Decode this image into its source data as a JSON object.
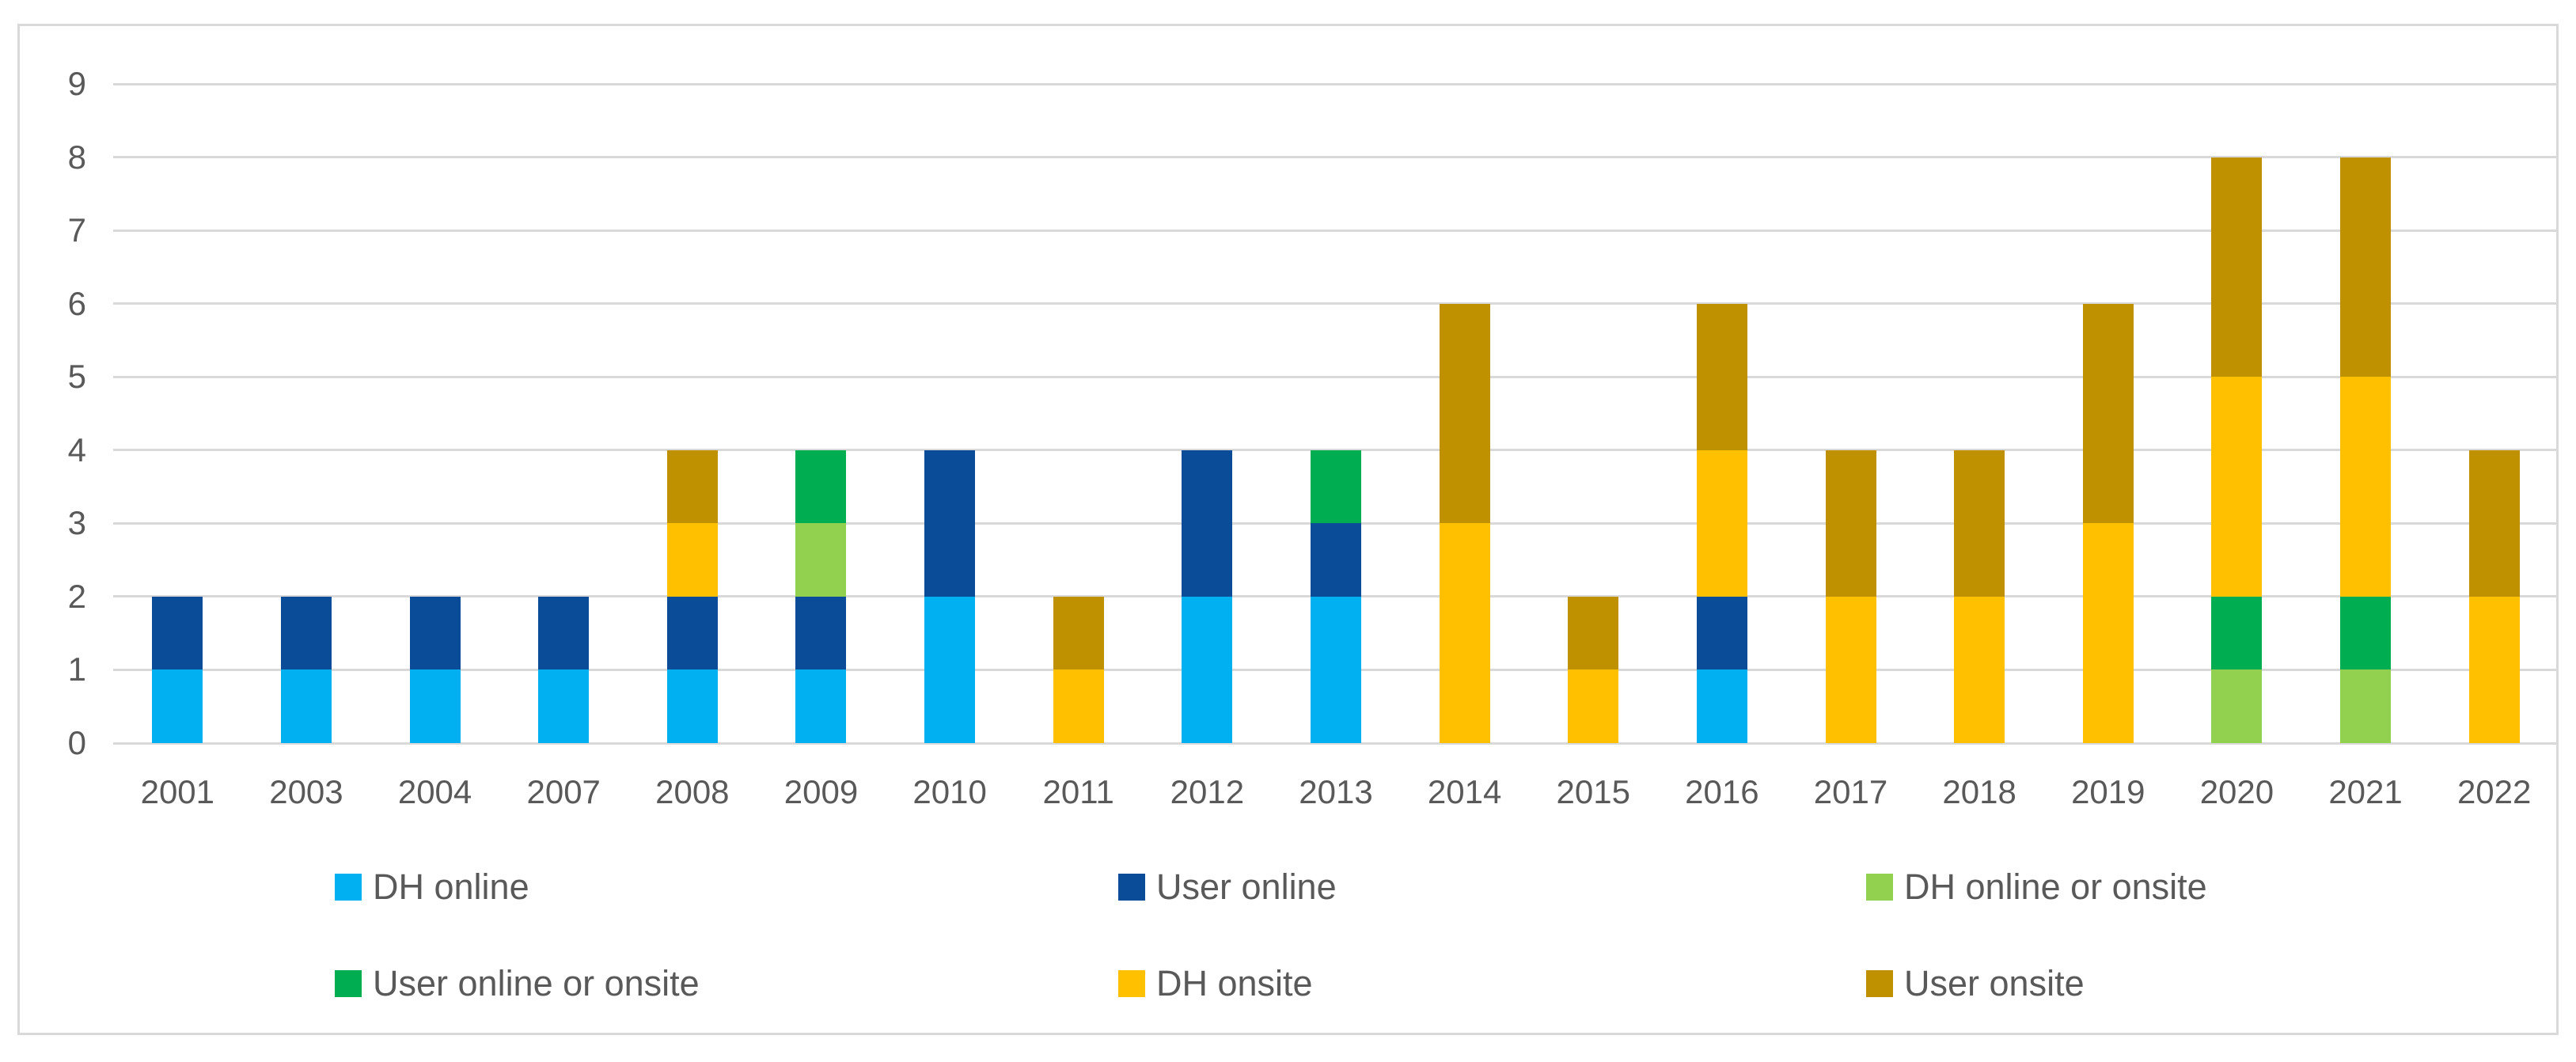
{
  "chart_data": {
    "type": "bar",
    "stacked": true,
    "title": "",
    "xlabel": "",
    "ylabel": "",
    "categories": [
      "2001",
      "2003",
      "2004",
      "2007",
      "2008",
      "2009",
      "2010",
      "2011",
      "2012",
      "2013",
      "2014",
      "2015",
      "2016",
      "2017",
      "2018",
      "2019",
      "2020",
      "2021",
      "2022"
    ],
    "series": [
      {
        "name": "DH online",
        "color": "#00B0F0",
        "values": [
          1,
          1,
          1,
          1,
          1,
          1,
          2,
          0,
          2,
          2,
          0,
          0,
          1,
          0,
          0,
          0,
          0,
          0,
          0
        ]
      },
      {
        "name": "User online",
        "color": "#0A4C97",
        "values": [
          1,
          1,
          1,
          1,
          1,
          1,
          2,
          0,
          2,
          1,
          0,
          0,
          1,
          0,
          0,
          0,
          0,
          0,
          0
        ]
      },
      {
        "name": "DH online or onsite",
        "color": "#92D050",
        "values": [
          0,
          0,
          0,
          0,
          0,
          1,
          0,
          0,
          0,
          0,
          0,
          0,
          0,
          0,
          0,
          0,
          1,
          1,
          0
        ]
      },
      {
        "name": "User online or onsite",
        "color": "#00AD51",
        "values": [
          0,
          0,
          0,
          0,
          0,
          1,
          0,
          0,
          0,
          1,
          0,
          0,
          0,
          0,
          0,
          0,
          1,
          1,
          0
        ]
      },
      {
        "name": "DH onsite",
        "color": "#FFC000",
        "values": [
          0,
          0,
          0,
          0,
          1,
          0,
          0,
          1,
          0,
          0,
          3,
          1,
          2,
          2,
          2,
          3,
          3,
          3,
          2
        ]
      },
      {
        "name": "User onsite",
        "color": "#BF9000",
        "values": [
          0,
          0,
          0,
          0,
          1,
          0,
          0,
          1,
          0,
          0,
          3,
          1,
          2,
          2,
          2,
          3,
          3,
          3,
          2
        ]
      }
    ],
    "ylim": [
      0,
      9
    ],
    "y_ticks": [
      0,
      1,
      2,
      3,
      4,
      5,
      6,
      7,
      8,
      9
    ],
    "grid": true,
    "legend_position": "bottom",
    "legend_rows": [
      [
        "DH online",
        "User online",
        "DH online or onsite"
      ],
      [
        "User online or onsite",
        "DH onsite",
        "User onsite"
      ]
    ]
  },
  "style": {
    "gridline_color": "#D9D9D9",
    "frame_border_color": "#D9D9D9",
    "tick_text_color": "#595959",
    "background_color": "#FFFFFF"
  }
}
